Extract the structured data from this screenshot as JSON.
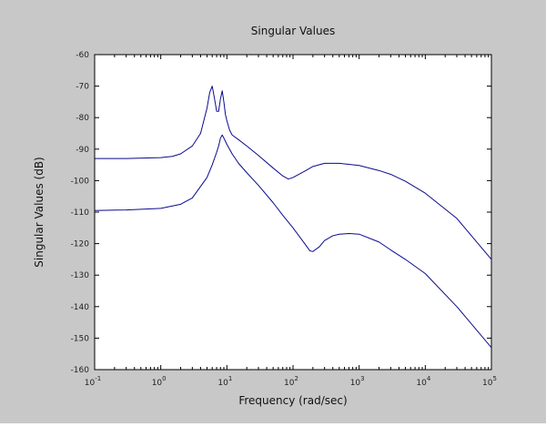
{
  "chart_data": {
    "type": "line",
    "title": "Singular Values",
    "xlabel": "Frequency (rad/sec)",
    "ylabel": "Singular Values (dB)",
    "xscale": "log",
    "xlim": [
      0.1,
      100000
    ],
    "ylim": [
      -160,
      -60
    ],
    "grid": false,
    "line_color": "#0a0a8c",
    "background_color": "#ffffff",
    "figure_color": "#c8c8c8",
    "x_ticks": [
      {
        "base": "10",
        "exp": "-1",
        "value": 0.1
      },
      {
        "base": "10",
        "exp": "0",
        "value": 1
      },
      {
        "base": "10",
        "exp": "1",
        "value": 10
      },
      {
        "base": "10",
        "exp": "2",
        "value": 100
      },
      {
        "base": "10",
        "exp": "3",
        "value": 1000
      },
      {
        "base": "10",
        "exp": "4",
        "value": 10000
      },
      {
        "base": "10",
        "exp": "5",
        "value": 100000
      }
    ],
    "y_ticks": [
      {
        "label": "-60",
        "value": -60
      },
      {
        "label": "-70",
        "value": -70
      },
      {
        "label": "-80",
        "value": -80
      },
      {
        "label": "-90",
        "value": -90
      },
      {
        "label": "-100",
        "value": -100
      },
      {
        "label": "-110",
        "value": -110
      },
      {
        "label": "-120",
        "value": -120
      },
      {
        "label": "-130",
        "value": -130
      },
      {
        "label": "-140",
        "value": -140
      },
      {
        "label": "-150",
        "value": -150
      },
      {
        "label": "-160",
        "value": -160
      }
    ],
    "series": [
      {
        "x": [
          0.1,
          0.3,
          1,
          1.5,
          2,
          3,
          4,
          5,
          5.5,
          6,
          6.5,
          7,
          7.5,
          8,
          8.5,
          9,
          9.5,
          10,
          11,
          12,
          15,
          20,
          30,
          50,
          70,
          85,
          100,
          150,
          200,
          300,
          500,
          1000,
          2000,
          3000,
          5000,
          10000,
          30000,
          100000
        ],
        "y": [
          -93,
          -93,
          -92.7,
          -92.3,
          -91.5,
          -89,
          -85,
          -77,
          -72,
          -70,
          -74,
          -78,
          -78,
          -74,
          -71.5,
          -75,
          -79,
          -81,
          -84,
          -85.5,
          -87,
          -89,
          -92,
          -96,
          -98.5,
          -99.5,
          -99,
          -97,
          -95.5,
          -94.5,
          -94.5,
          -95.2,
          -96.8,
          -98,
          -100.2,
          -104,
          -112,
          -125
        ]
      },
      {
        "x": [
          0.1,
          0.3,
          1,
          2,
          3,
          5,
          6,
          7,
          7.5,
          8,
          8.5,
          9,
          10,
          12,
          15,
          20,
          30,
          50,
          70,
          100,
          150,
          180,
          200,
          250,
          300,
          400,
          500,
          700,
          1000,
          2000,
          3000,
          5000,
          10000,
          30000,
          100000
        ],
        "y": [
          -109.5,
          -109.3,
          -108.8,
          -107.5,
          -105.5,
          -99,
          -95,
          -91,
          -89,
          -86.5,
          -85.5,
          -86.5,
          -88.5,
          -91.5,
          -94.5,
          -97.5,
          -101.5,
          -107,
          -111,
          -115,
          -120,
          -122.3,
          -122.5,
          -121,
          -119,
          -117.5,
          -117,
          -116.8,
          -117,
          -119.5,
          -122,
          -125,
          -129.5,
          -140,
          -153
        ]
      }
    ]
  }
}
